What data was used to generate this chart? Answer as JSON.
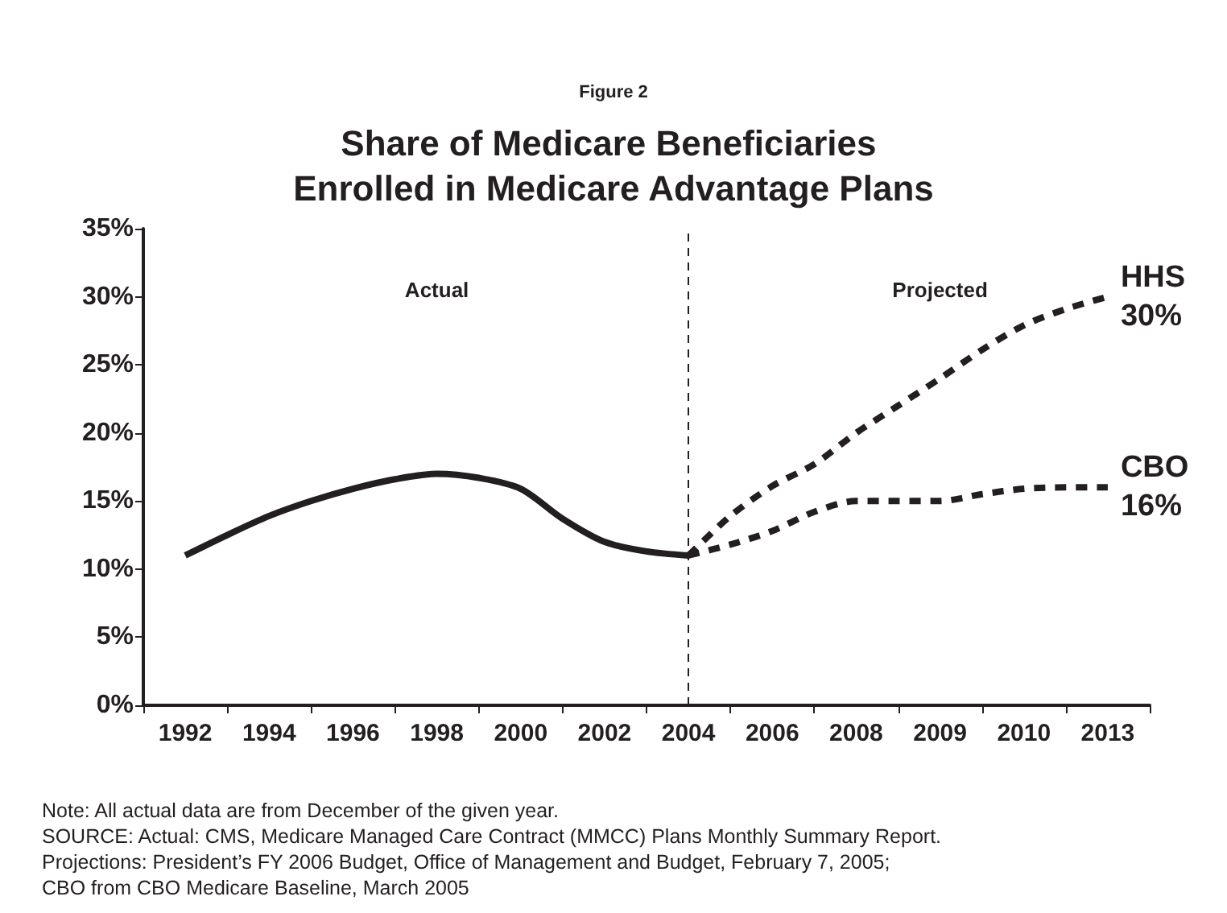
{
  "chart_data": {
    "type": "line",
    "subtitle": "Figure 2",
    "title": "Share of Medicare Beneficiaries Enrolled in Medicare Advantage Plans",
    "categories": [
      null,
      "1992",
      null,
      "1994",
      null,
      "1996",
      null,
      "1998",
      null,
      "2000",
      null,
      "2002",
      null,
      "2004",
      null,
      "2006",
      null,
      "2008",
      null,
      "2009",
      null,
      "2010",
      null,
      "2013",
      null
    ],
    "series": [
      {
        "color": "#231f20",
        "line_style": "solid",
        "values": [
          null,
          11,
          12.5,
          13.9,
          15.0,
          15.9,
          16.6,
          17.0,
          16.7,
          15.9,
          13.7,
          12.0,
          11.3,
          11.0,
          null,
          null,
          null,
          null,
          null,
          null,
          null,
          null,
          null,
          null,
          null
        ]
      },
      {
        "name": "HHS",
        "color": "#231f20",
        "line_style": "dashed",
        "values": [
          null,
          null,
          null,
          null,
          null,
          null,
          null,
          null,
          null,
          null,
          null,
          null,
          null,
          11.0,
          13.9,
          16.1,
          17.7,
          20.0,
          22.0,
          24.0,
          26.1,
          27.9,
          29.1,
          30,
          null
        ],
        "value_labels": [
          null,
          null,
          null,
          null,
          null,
          null,
          null,
          null,
          null,
          null,
          null,
          null,
          null,
          null,
          null,
          null,
          null,
          null,
          null,
          null,
          null,
          null,
          null,
          "30%",
          null
        ]
      },
      {
        "name": "CBO",
        "color": "#231f20",
        "line_style": "dashed",
        "values": [
          null,
          null,
          null,
          null,
          null,
          null,
          null,
          null,
          null,
          null,
          null,
          null,
          null,
          11.0,
          11.8,
          12.8,
          14.2,
          15.0,
          15.0,
          15.0,
          15.5,
          15.9,
          16,
          16,
          null
        ],
        "value_labels": [
          null,
          null,
          null,
          null,
          null,
          null,
          null,
          null,
          null,
          null,
          null,
          null,
          null,
          null,
          null,
          null,
          null,
          null,
          null,
          null,
          null,
          null,
          null,
          "16%",
          null
        ]
      }
    ],
    "ylim": [
      0,
      35
    ],
    "yticks": [
      {
        "value": 0,
        "label": "0%"
      },
      {
        "value": 5,
        "label": "5%"
      },
      {
        "value": 10,
        "label": "10%"
      },
      {
        "value": 15,
        "label": "15%"
      },
      {
        "value": 20,
        "label": "20%"
      },
      {
        "value": 25,
        "label": "25%"
      },
      {
        "value": 30,
        "label": "30%"
      },
      {
        "value": 35,
        "label": "35%"
      }
    ],
    "grid": false,
    "legend": false,
    "marker": "none",
    "ref_lines": [
      {
        "axis": "x",
        "value": "2004",
        "color": "#231f20",
        "line_style": "dashed"
      }
    ],
    "annotations": [
      "Actual",
      "Projected",
      "Note: All actual data are from December of the given year.",
      "SOURCE: Actual: CMS, Medicare Managed Care Contract (MMCC) Plans Monthly Summary Report.",
      "Projections: President’s FY 2006 Budget, Office of Management and Budget, February 7, 2005;",
      "CBO from CBO Medicare Baseline, March 2005"
    ]
  }
}
